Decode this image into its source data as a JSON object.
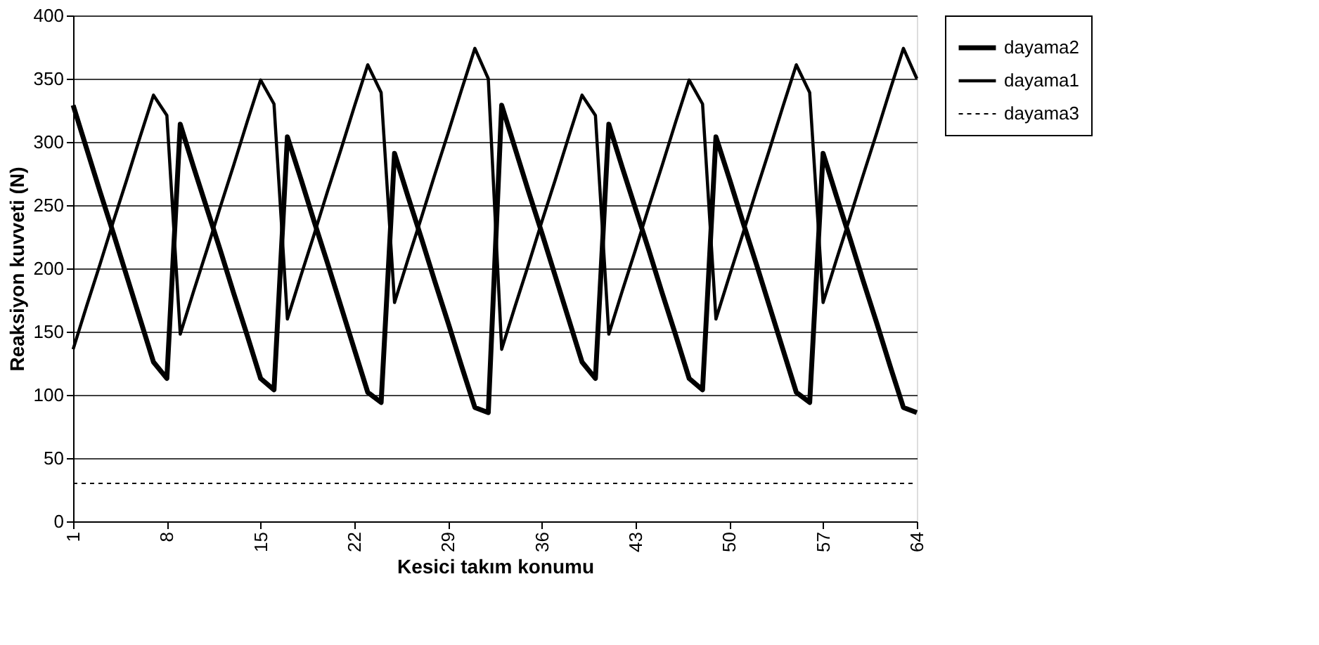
{
  "chart_data": {
    "type": "line",
    "xlabel": "Kesici takım konumu",
    "ylabel": "Reaksiyon kuvveti (N)",
    "x": [
      1,
      2,
      3,
      4,
      5,
      6,
      7,
      8,
      9,
      10,
      11,
      12,
      13,
      14,
      15,
      16,
      17,
      18,
      19,
      20,
      21,
      22,
      23,
      24,
      25,
      26,
      27,
      28,
      29,
      30,
      31,
      32,
      33,
      34,
      35,
      36,
      37,
      38,
      39,
      40,
      41,
      42,
      43,
      44,
      45,
      46,
      47,
      48,
      49,
      50,
      51,
      52,
      53,
      54,
      55,
      56,
      57,
      58,
      59,
      60,
      61,
      62,
      63,
      64
    ],
    "series": [
      {
        "name": "dayama2",
        "color": "#000000",
        "line_style": "solid",
        "values": [
          329,
          295,
          261,
          228,
          194,
          160,
          126,
          113,
          314,
          280,
          247,
          214,
          180,
          147,
          113,
          104,
          304,
          271,
          237,
          204,
          170,
          136,
          102,
          94,
          291,
          257,
          224,
          190,
          157,
          123,
          90,
          86,
          329,
          295,
          261,
          228,
          194,
          160,
          126,
          113,
          314,
          280,
          247,
          214,
          180,
          147,
          113,
          104,
          304,
          271,
          237,
          204,
          170,
          136,
          102,
          94,
          291,
          257,
          224,
          190,
          157,
          123,
          90,
          86
        ]
      },
      {
        "name": "dayama1",
        "color": "#000000",
        "line_style": "solid",
        "values": [
          136,
          170,
          203,
          237,
          270,
          304,
          337,
          321,
          148,
          182,
          215,
          249,
          282,
          316,
          349,
          330,
          160,
          194,
          227,
          261,
          294,
          328,
          361,
          339,
          173,
          207,
          240,
          274,
          307,
          341,
          374,
          350,
          136,
          170,
          203,
          237,
          270,
          304,
          337,
          321,
          148,
          182,
          215,
          249,
          282,
          316,
          349,
          330,
          160,
          194,
          227,
          261,
          294,
          328,
          361,
          339,
          173,
          207,
          240,
          274,
          307,
          341,
          374,
          350
        ]
      },
      {
        "name": "dayama3",
        "color": "#000000",
        "line_style": "dotted",
        "values": [
          30,
          30,
          30,
          30,
          30,
          30,
          30,
          30,
          30,
          30,
          30,
          30,
          30,
          30,
          30,
          30,
          30,
          30,
          30,
          30,
          30,
          30,
          30,
          30,
          30,
          30,
          30,
          30,
          30,
          30,
          30,
          30,
          30,
          30,
          30,
          30,
          30,
          30,
          30,
          30,
          30,
          30,
          30,
          30,
          30,
          30,
          30,
          30,
          30,
          30,
          30,
          30,
          30,
          30,
          30,
          30,
          30,
          30,
          30,
          30,
          30,
          30,
          30,
          30
        ]
      }
    ],
    "xlim": [
      1,
      64
    ],
    "xticks": [
      1,
      8,
      15,
      22,
      29,
      36,
      43,
      50,
      57,
      64
    ],
    "ylim": [
      0,
      400
    ],
    "yticks": [
      0,
      50,
      100,
      150,
      200,
      250,
      300,
      350,
      400
    ],
    "grid": "y",
    "legend": "right",
    "marker": "none"
  }
}
